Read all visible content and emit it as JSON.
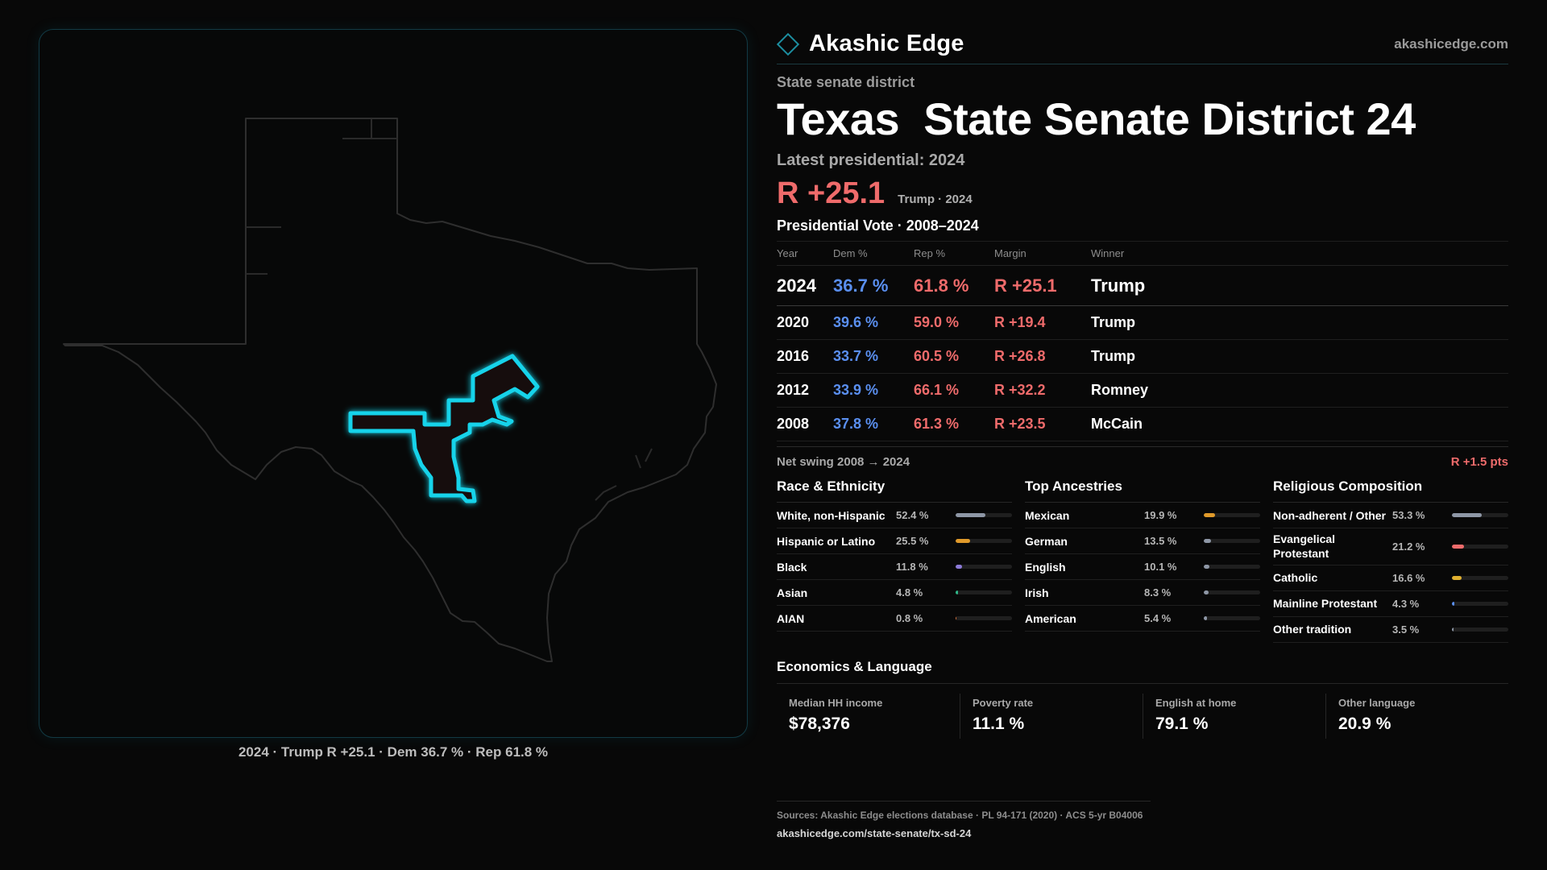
{
  "brand": {
    "name": "Akashic Edge",
    "domain": "akashicedge.com",
    "accent": "#1c8ea0"
  },
  "map": {
    "caption": "2024 · Trump R +25.1 · Dem 36.7 % · Rep 61.8 %",
    "state_outline_color": "#2e2e2e",
    "district_outline_color": "#19d3ea",
    "district_fill_color": "#170d0e"
  },
  "header": {
    "kicker": "State senate district",
    "title": "Texas  State Senate District 24",
    "latest_label": "Latest presidential: 2024",
    "big_margin": "R +25.1",
    "margin_note": "Trump · 2024"
  },
  "votes": {
    "title": "Presidential Vote · 2008–2024",
    "columns": [
      "Year",
      "Dem %",
      "Rep %",
      "Margin",
      "Winner"
    ],
    "rows": [
      {
        "year": "2024",
        "dem": "36.7 %",
        "rep": "61.8 %",
        "margin": "R +25.1",
        "winner": "Trump"
      },
      {
        "year": "2020",
        "dem": "39.6 %",
        "rep": "59.0 %",
        "margin": "R +19.4",
        "winner": "Trump"
      },
      {
        "year": "2016",
        "dem": "33.7 %",
        "rep": "60.5 %",
        "margin": "R +26.8",
        "winner": "Trump"
      },
      {
        "year": "2012",
        "dem": "33.9 %",
        "rep": "66.1 %",
        "margin": "R +32.2",
        "winner": "Romney"
      },
      {
        "year": "2008",
        "dem": "37.8 %",
        "rep": "61.3 %",
        "margin": "R +23.5",
        "winner": "McCain"
      }
    ],
    "dem_color": "#5a8ff0",
    "rep_color": "#ef6b6b"
  },
  "swing": {
    "label": "Net swing 2008 → 2024",
    "value": "R +1.5 pts"
  },
  "demographics": [
    {
      "title": "Race & Ethnicity",
      "rows": [
        {
          "label": "White, non-Hispanic",
          "value": "52.4 %",
          "pct": 52.4,
          "color": "#8e97a6"
        },
        {
          "label": "Hispanic or Latino",
          "value": "25.5 %",
          "pct": 25.5,
          "color": "#e09a2a"
        },
        {
          "label": "Black",
          "value": "11.8 %",
          "pct": 11.8,
          "color": "#8c7ad8"
        },
        {
          "label": "Asian",
          "value": "4.8 %",
          "pct": 4.8,
          "color": "#2fb98a"
        },
        {
          "label": "AIAN",
          "value": "0.8 %",
          "pct": 0.8,
          "color": "#d0703a"
        }
      ]
    },
    {
      "title": "Top Ancestries",
      "rows": [
        {
          "label": "Mexican",
          "value": "19.9 %",
          "pct": 19.9,
          "color": "#e09a2a"
        },
        {
          "label": "German",
          "value": "13.5 %",
          "pct": 13.5,
          "color": "#8e97a6"
        },
        {
          "label": "English",
          "value": "10.1 %",
          "pct": 10.1,
          "color": "#8e97a6"
        },
        {
          "label": "Irish",
          "value": "8.3 %",
          "pct": 8.3,
          "color": "#8e97a6"
        },
        {
          "label": "American",
          "value": "5.4 %",
          "pct": 5.4,
          "color": "#8e97a6"
        }
      ]
    },
    {
      "title": "Religious Composition",
      "rows": [
        {
          "label": "Non-adherent / Other",
          "value": "53.3 %",
          "pct": 53.3,
          "color": "#8e97a6"
        },
        {
          "label": "Evangelical Protestant",
          "value": "21.2 %",
          "pct": 21.2,
          "color": "#ef6b6b"
        },
        {
          "label": "Catholic",
          "value": "16.6 %",
          "pct": 16.6,
          "color": "#e0b030"
        },
        {
          "label": "Mainline Protestant",
          "value": "4.3 %",
          "pct": 4.3,
          "color": "#5a8ff0"
        },
        {
          "label": "Other tradition",
          "value": "3.5 %",
          "pct": 3.5,
          "color": "#8e97a6"
        }
      ]
    }
  ],
  "economics": {
    "title": "Economics & Language",
    "items": [
      {
        "label": "Median HH income",
        "value": "$78,376"
      },
      {
        "label": "Poverty rate",
        "value": "11.1 %"
      },
      {
        "label": "English at home",
        "value": "79.1 %"
      },
      {
        "label": "Other language",
        "value": "20.9 %"
      }
    ]
  },
  "sources": {
    "text": "Sources: Akashic Edge elections database · PL 94-171 (2020) · ACS 5-yr B04006",
    "url": "akashicedge.com/state-senate/tx-sd-24"
  }
}
